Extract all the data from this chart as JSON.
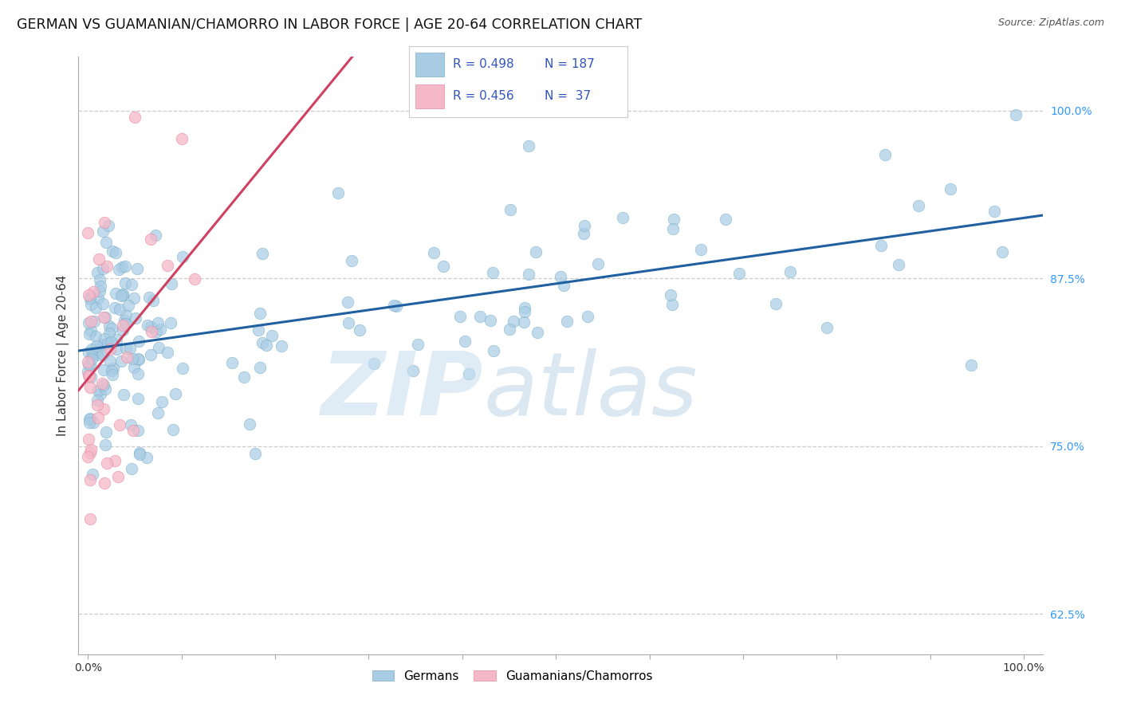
{
  "title": "GERMAN VS GUAMANIAN/CHAMORRO IN LABOR FORCE | AGE 20-64 CORRELATION CHART",
  "source": "Source: ZipAtlas.com",
  "ylabel": "In Labor Force | Age 20-64",
  "y_ticks": [
    0.625,
    0.75,
    0.875,
    1.0
  ],
  "y_tick_labels": [
    "62.5%",
    "75.0%",
    "87.5%",
    "100.0%"
  ],
  "x_ticks": [
    0.0,
    0.1,
    0.2,
    0.3,
    0.4,
    0.5,
    0.6,
    0.7,
    0.8,
    0.9,
    1.0
  ],
  "x_tick_labels": [
    "0.0%",
    "",
    "",
    "",
    "",
    "",
    "",
    "",
    "",
    "",
    "100.0%"
  ],
  "xlim": [
    -0.01,
    1.02
  ],
  "ylim": [
    0.595,
    1.04
  ],
  "blue_color": "#a8cce4",
  "pink_color": "#f5b8c8",
  "blue_edge_color": "#7aaec8",
  "pink_edge_color": "#e888a0",
  "blue_line_color": "#2060a0",
  "pink_line_color": "#d04060",
  "legend_label_blue": "Germans",
  "legend_label_pink": "Guamanians/Chamorros",
  "blue_R": 0.498,
  "blue_N": 187,
  "pink_R": 0.456,
  "pink_N": 37,
  "blue_intercept": 0.822,
  "blue_slope": 0.098,
  "pink_intercept": 0.8,
  "pink_slope": 0.85,
  "background_color": "#ffffff",
  "grid_color": "#cccccc",
  "title_fontsize": 12.5,
  "axis_label_fontsize": 11,
  "tick_fontsize": 10,
  "legend_text_color": "#3355bb",
  "ytick_color": "#3399ff",
  "watermark_zip_color": "#c5ddf0",
  "watermark_atlas_color": "#b0cce0"
}
